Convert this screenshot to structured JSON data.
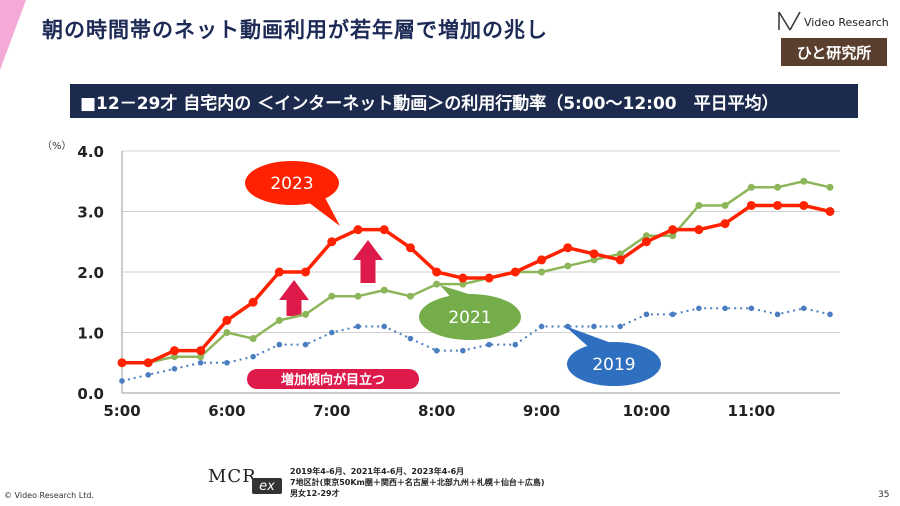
{
  "page": {
    "title": "朝の時間帯のネット動画利用が若年層で増加の兆し",
    "subtitle": "■12－29才 自宅内の ＜インターネット動画＞の利用行動率（5:00〜12:00　平日平均）",
    "page_number": "35",
    "copyright": "© Video Research Ltd.",
    "logo_text": "Video Research",
    "logo_box_text": "ひと研究所",
    "mcr_logo_text": "MCR",
    "mcr_logo_ex": "ex",
    "source_notes": [
      "2019年4-6月、2021年4-6月、2023年4-6月",
      "7地区計(東京50Km圏＋関西＋名古屋＋北部九州＋札幌＋仙台＋広島)",
      "男女12-29才"
    ]
  },
  "chart_data": {
    "type": "line",
    "ylabel": "（%）",
    "ylim": [
      0,
      4
    ],
    "yticks": [
      "0.0",
      "1.0",
      "2.0",
      "3.0",
      "4.0"
    ],
    "ytick_values": [
      0,
      1,
      2,
      3,
      4
    ],
    "x_tick_labels": [
      "5:00",
      "6:00",
      "7:00",
      "8:00",
      "9:00",
      "10:00",
      "11:00"
    ],
    "x_tick_minutes": [
      300,
      360,
      420,
      480,
      540,
      600,
      660
    ],
    "xlim_minutes": [
      300,
      705
    ],
    "x_minutes": [
      300,
      315,
      330,
      345,
      360,
      375,
      390,
      405,
      420,
      435,
      450,
      465,
      480,
      495,
      510,
      525,
      540,
      555,
      570,
      585,
      600,
      615,
      630,
      645,
      660,
      675,
      690,
      705
    ],
    "grid": "horizontal",
    "annotation": "増加傾向が目立つ",
    "series": [
      {
        "name": "2023",
        "color": "#ff2200",
        "values": [
          0.5,
          0.5,
          0.7,
          0.7,
          1.2,
          1.5,
          2.0,
          2.0,
          2.5,
          2.7,
          2.7,
          2.4,
          2.0,
          1.9,
          1.9,
          2.0,
          2.2,
          2.4,
          2.3,
          2.2,
          2.5,
          2.7,
          2.7,
          2.8,
          3.1,
          3.1,
          3.1,
          3.0
        ]
      },
      {
        "name": "2021",
        "color": "#8db65a",
        "values": [
          0.5,
          0.5,
          0.6,
          0.6,
          1.0,
          0.9,
          1.2,
          1.3,
          1.6,
          1.6,
          1.7,
          1.6,
          1.8,
          1.8,
          1.9,
          2.0,
          2.0,
          2.1,
          2.2,
          2.3,
          2.6,
          2.6,
          3.1,
          3.1,
          3.4,
          3.4,
          3.5,
          3.4
        ]
      },
      {
        "name": "2019",
        "color": "#4a7ec0",
        "values": [
          0.2,
          0.3,
          0.4,
          0.5,
          0.5,
          0.6,
          0.8,
          0.8,
          1.0,
          1.1,
          1.1,
          0.9,
          0.7,
          0.7,
          0.8,
          0.8,
          1.1,
          1.1,
          1.1,
          1.1,
          1.3,
          1.3,
          1.4,
          1.4,
          1.4,
          1.3,
          1.4,
          1.3
        ]
      }
    ],
    "callout_colors": {
      "2023": "#ff2200",
      "2021": "#75ad4a",
      "2019": "#2e6fc0"
    },
    "arrow_color": "#dd1a4a",
    "annotation_color": "#dd1a4a"
  }
}
